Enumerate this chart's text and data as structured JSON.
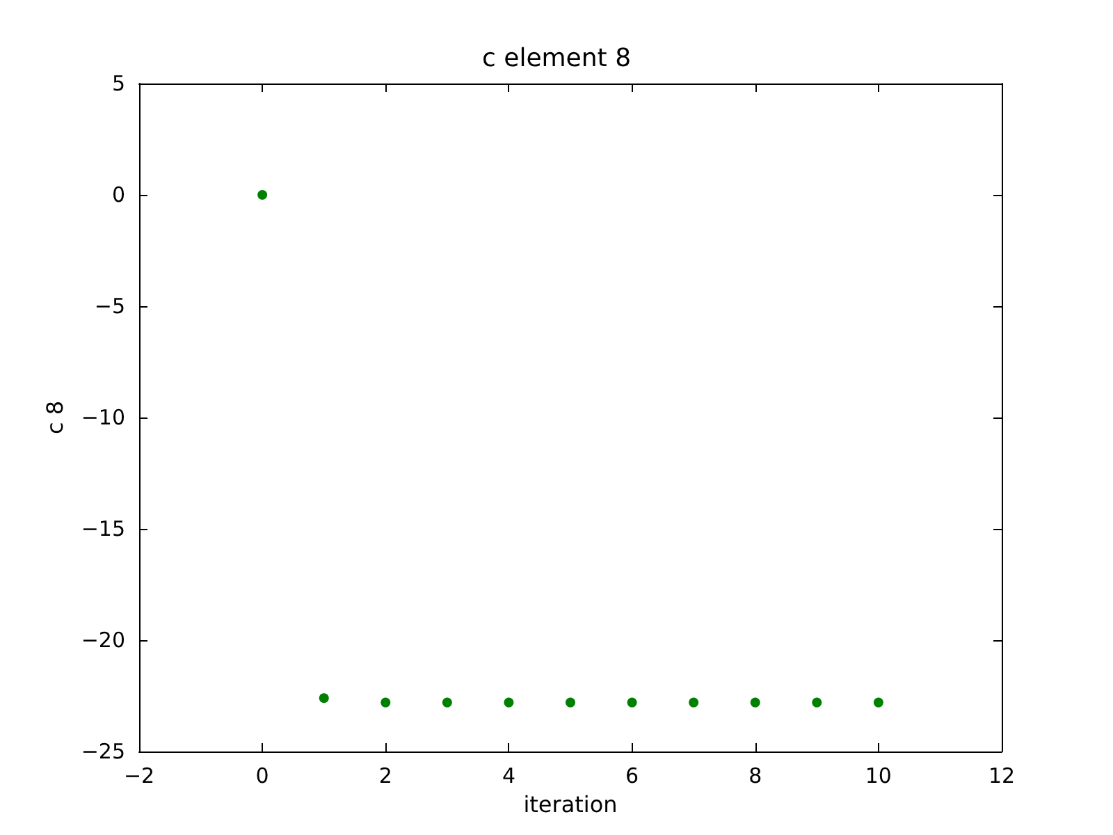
{
  "chart_data": {
    "type": "scatter",
    "title": "c element 8",
    "xlabel": "iteration",
    "ylabel": "c 8",
    "x": [
      0,
      1,
      2,
      3,
      4,
      5,
      6,
      7,
      8,
      9,
      10
    ],
    "series": [
      {
        "color": "#008000",
        "values": [
          0,
          -22.6,
          -22.8,
          -22.8,
          -22.8,
          -22.8,
          -22.8,
          -22.8,
          -22.8,
          -22.8,
          -22.8
        ]
      }
    ],
    "xlim": [
      -2,
      12
    ],
    "xticks": [
      -2,
      0,
      2,
      4,
      6,
      8,
      10,
      12
    ],
    "ylim": [
      -25,
      5
    ],
    "yticks": [
      -25,
      -20,
      -15,
      -10,
      -5,
      0,
      5
    ],
    "grid": false,
    "marker": "circle"
  }
}
